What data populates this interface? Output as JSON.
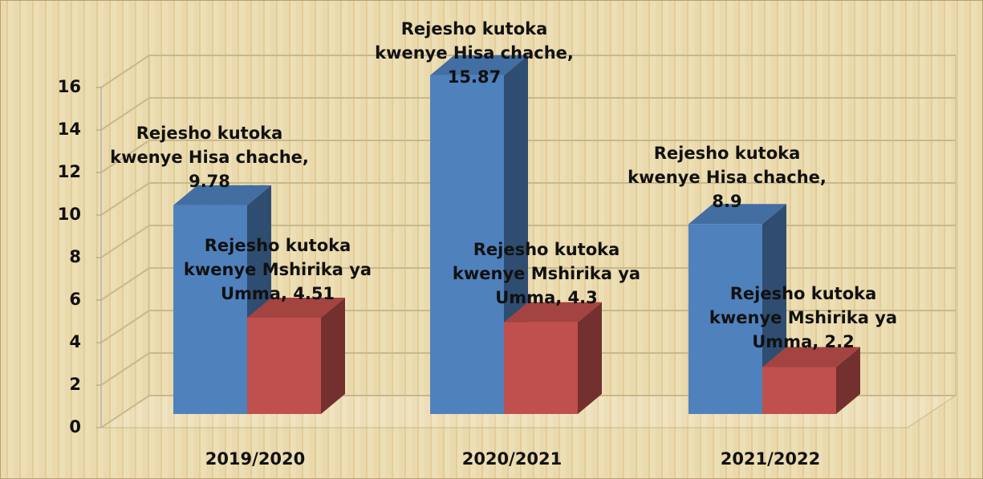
{
  "chart_data": {
    "type": "bar3d",
    "categories": [
      "2019/2020",
      "2020/2021",
      "2021/2022"
    ],
    "series": [
      {
        "color": "#4f81bd",
        "values": [
          9.78,
          15.87,
          8.9
        ],
        "value_labels": [
          "Rejesho kutoka kwenye Hisa chache, 9.78",
          "Rejesho kutoka kwenye Hisa chache, 15.87",
          "Rejesho kutoka kwenye Hisa chache, 8.9"
        ]
      },
      {
        "color": "#c0504d",
        "values": [
          4.51,
          4.3,
          2.2
        ],
        "value_labels": [
          "Rejesho kutoka kwenye Mshirika ya Umma, 4.51",
          "Rejesho kutoka kwenye Mshirika ya Umma, 4.3",
          "Rejesho kutoka kwenye Mshirika ya Umma, 2.2"
        ]
      }
    ],
    "ylim": [
      0,
      16
    ],
    "yticks": [
      0,
      2,
      4,
      6,
      8,
      10,
      12,
      14,
      16
    ],
    "grid": true
  }
}
